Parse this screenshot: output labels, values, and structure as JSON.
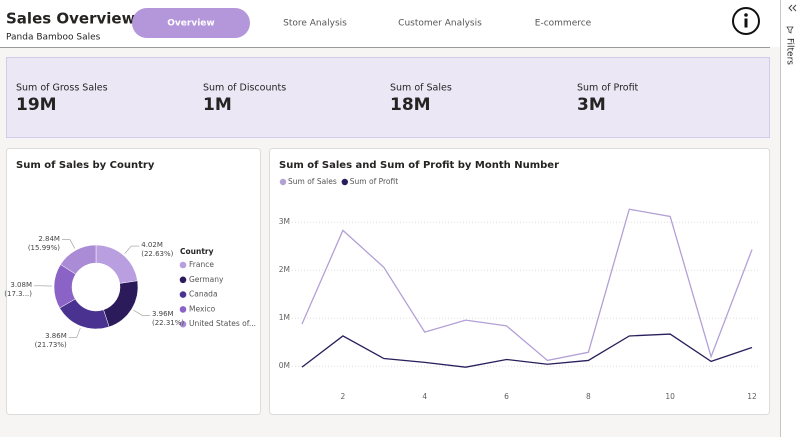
{
  "header": {
    "title": "Sales Overview",
    "subtitle": "Panda Bamboo Sales"
  },
  "nav": {
    "tabs": [
      "Overview",
      "Store Analysis",
      "Customer Analysis",
      "E-commerce"
    ]
  },
  "side_pane": {
    "label": "Filters"
  },
  "kpis": [
    {
      "label": "Sum of Gross Sales",
      "value": "19M"
    },
    {
      "label": "Sum of Discounts",
      "value": "1M"
    },
    {
      "label": "Sum of Sales",
      "value": "18M"
    },
    {
      "label": "Sum of Profit",
      "value": "3M"
    }
  ],
  "chart_data": [
    {
      "type": "pie",
      "donut": true,
      "title": "Sum of Sales by Country",
      "legend_title": "Country",
      "categories": [
        "France",
        "Germany",
        "Canada",
        "Mexico",
        "United States of..."
      ],
      "values": [
        4.02,
        3.96,
        3.86,
        3.08,
        2.84
      ],
      "value_labels": [
        "4.02M (22.63%)",
        "3.96M (22.31%)",
        "3.86M (21.73%)",
        "3.08M (17.3...)",
        "2.84M (15.99%)"
      ],
      "colors": [
        "#b99ee0",
        "#2b1b5a",
        "#4a3290",
        "#8b62c6",
        "#a98bd6"
      ]
    },
    {
      "type": "line",
      "title": "Sum of Sales and Sum of Profit by Month Number",
      "grid": true,
      "x": [
        1,
        2,
        3,
        4,
        5,
        6,
        7,
        8,
        9,
        10,
        11,
        12
      ],
      "xlim": [
        1,
        12
      ],
      "xticks": [
        2,
        4,
        6,
        8,
        10,
        12
      ],
      "ylim": [
        -100000,
        3400000
      ],
      "yticks": [
        {
          "value": 0,
          "label": "0M"
        },
        {
          "value": 1000000,
          "label": "1M"
        },
        {
          "value": 2000000,
          "label": "2M"
        },
        {
          "value": 3000000,
          "label": "3M"
        }
      ],
      "series": [
        {
          "name": "Sum of Sales",
          "color": "#b3a0d6",
          "values": [
            880000,
            2830000,
            2060000,
            710000,
            960000,
            840000,
            120000,
            290000,
            3270000,
            3120000,
            200000,
            2430000
          ]
        },
        {
          "name": "Sum of Profit",
          "color": "#2a1d5c",
          "values": [
            -20000,
            630000,
            160000,
            80000,
            -20000,
            140000,
            40000,
            120000,
            630000,
            670000,
            100000,
            390000
          ]
        }
      ]
    }
  ]
}
